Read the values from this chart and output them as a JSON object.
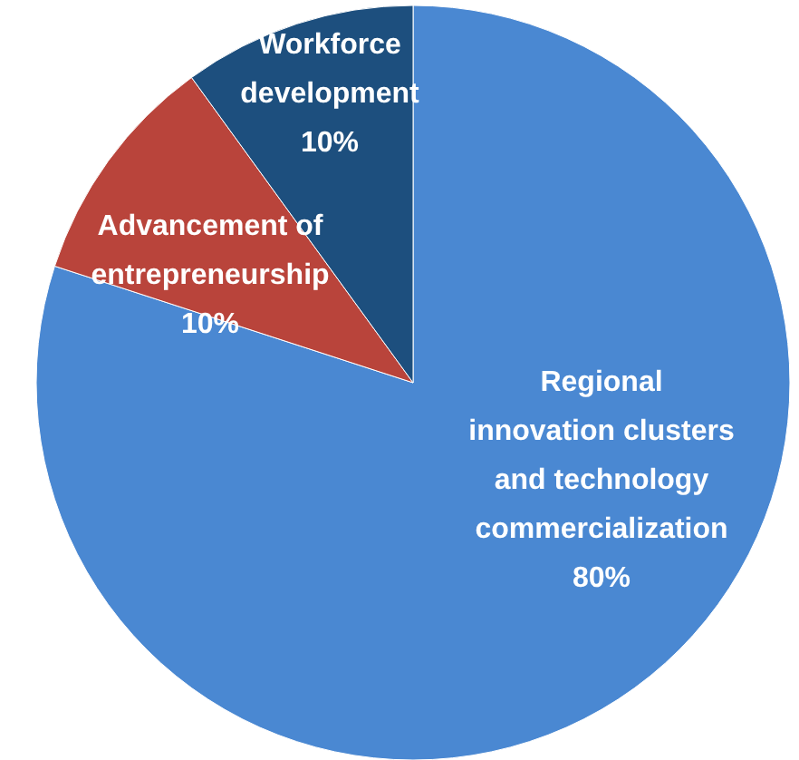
{
  "chart_data": {
    "type": "pie",
    "categories": [
      "Regional innovation clusters and technology commercialization",
      "Advancement of entrepreneurship",
      "Workforce development"
    ],
    "values": [
      80,
      10,
      10
    ],
    "colors": [
      "#4a88d2",
      "#b9443b",
      "#1d4f7e"
    ],
    "value_labels": [
      "80%",
      "10%",
      "10%"
    ]
  }
}
